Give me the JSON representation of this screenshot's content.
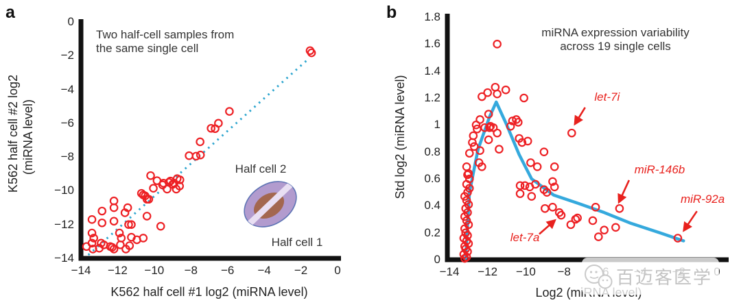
{
  "panel_labels": {
    "a": "a",
    "b": "b"
  },
  "watermark": {
    "logo": "wechat-logo",
    "text": "百迈客医学"
  },
  "colors": {
    "marker": "#ed2024",
    "trend_line": "#35a9dd",
    "dotted_line": "#2fa6cf",
    "annotation": "#e8211d",
    "axis": "#111111",
    "text": "#333333",
    "cell_outer_fill": "#b29bce",
    "cell_outer_stroke": "#5d73b4",
    "cell_nucleus": "#a3674f",
    "cell_split_stripe": "#e9dff3",
    "watermark_gray": "#c3c3c3"
  },
  "chart_data": [
    {
      "type": "scatter",
      "title_line1": "Two half-cell samples from",
      "title_line2": "the same single cell",
      "xlabel": "K562 half cell #1 log2 (miRNA level)",
      "ylabel_line1": "K562 half cell #2 log2",
      "ylabel_line2": "(miRNA level)",
      "xlim": [
        -14,
        0
      ],
      "ylim": [
        -14,
        0
      ],
      "grid": false,
      "x_ticks": {
        "values": [
          -14,
          -12,
          -10,
          -8,
          -6,
          -4,
          -2,
          0
        ],
        "labels": [
          "−14",
          "−12",
          "−10",
          "−8",
          "−6",
          "−4",
          "−2",
          "0"
        ]
      },
      "y_ticks": {
        "values": [
          0,
          -2,
          -4,
          -6,
          -8,
          -10,
          -12,
          -14
        ],
        "labels": [
          "0",
          "−2",
          "−4",
          "−6",
          "−8",
          "−10",
          "−12",
          "−14"
        ]
      },
      "identity_line": {
        "style": "dotted",
        "from": [
          -13.6,
          -13.8
        ],
        "to": [
          -1.65,
          -2.25
        ]
      },
      "inset": {
        "label_top": "Half cell 2",
        "label_bottom": "Half cell 1"
      },
      "points": [
        [
          -1.5,
          -1.7
        ],
        [
          -1.42,
          -1.83
        ],
        [
          -5.9,
          -5.3
        ],
        [
          -6.5,
          -6.0
        ],
        [
          -6.9,
          -6.3
        ],
        [
          -6.68,
          -6.32
        ],
        [
          -7.5,
          -7.1
        ],
        [
          -7.72,
          -7.95
        ],
        [
          -7.48,
          -7.88
        ],
        [
          -8.1,
          -7.92
        ],
        [
          -8.6,
          -9.35
        ],
        [
          -8.75,
          -9.28
        ],
        [
          -8.92,
          -9.55
        ],
        [
          -8.62,
          -9.72
        ],
        [
          -9.0,
          -9.62
        ],
        [
          -8.8,
          -9.9
        ],
        [
          -9.12,
          -9.42
        ],
        [
          -9.3,
          -9.9
        ],
        [
          -9.2,
          -9.5
        ],
        [
          -9.5,
          -9.55
        ],
        [
          -9.85,
          -9.4
        ],
        [
          -9.55,
          -9.65
        ],
        [
          -10.2,
          -9.1
        ],
        [
          -10.05,
          -9.85
        ],
        [
          -10.5,
          -10.3
        ],
        [
          -10.3,
          -10.5
        ],
        [
          -10.7,
          -10.15
        ],
        [
          -10.6,
          -10.25
        ],
        [
          -10.4,
          -10.5
        ],
        [
          -12.2,
          -10.6
        ],
        [
          -12.2,
          -11.0
        ],
        [
          -11.45,
          -11.0
        ],
        [
          -11.6,
          -11.3
        ],
        [
          -12.85,
          -11.2
        ],
        [
          -13.4,
          -11.7
        ],
        [
          -12.85,
          -11.9
        ],
        [
          -12.2,
          -11.8
        ],
        [
          -11.4,
          -12.0
        ],
        [
          -11.25,
          -12.0
        ],
        [
          -10.4,
          -11.5
        ],
        [
          -13.4,
          -12.5
        ],
        [
          -13.3,
          -12.8
        ],
        [
          -11.9,
          -12.5
        ],
        [
          -11.8,
          -12.8
        ],
        [
          -11.25,
          -12.75
        ],
        [
          -10.95,
          -12.9
        ],
        [
          -10.6,
          -12.8
        ],
        [
          -9.65,
          -12.1
        ],
        [
          -13.7,
          -13.3
        ],
        [
          -13.4,
          -13.1
        ],
        [
          -13.35,
          -13.45
        ],
        [
          -13.0,
          -13.4
        ],
        [
          -12.9,
          -13.1
        ],
        [
          -12.75,
          -13.2
        ],
        [
          -12.4,
          -13.3
        ],
        [
          -12.3,
          -13.35
        ],
        [
          -12.2,
          -13.45
        ],
        [
          -11.85,
          -13.2
        ],
        [
          -11.55,
          -13.45
        ],
        [
          -11.35,
          -13.25
        ]
      ]
    },
    {
      "type": "scatter",
      "title_line1": "miRNA expression variability",
      "title_line2": "across 19 single cells",
      "xlabel": "Log2 (miRNA level)",
      "ylabel": "Std log2 (miRNA level)",
      "xlim": [
        -14,
        0
      ],
      "ylim": [
        0,
        1.8
      ],
      "grid": false,
      "x_ticks": {
        "values": [
          -14,
          -12,
          -10,
          -8,
          -6,
          -4,
          -2,
          0
        ],
        "labels": [
          "−14",
          "−12",
          "−10",
          "−8",
          "−6",
          "−4",
          "−2",
          "0"
        ]
      },
      "y_ticks": {
        "values": [
          0,
          0.2,
          0.4,
          0.6,
          0.8,
          1,
          1.2,
          1.4,
          1.6,
          1.8
        ],
        "labels": [
          "0",
          "0.2",
          "0.4",
          "0.6",
          "0.8",
          "1",
          "1.2",
          "1.4",
          "1.6",
          "1.8"
        ]
      },
      "trend_line": [
        [
          -13.15,
          0.01
        ],
        [
          -12.95,
          0.5
        ],
        [
          -12.5,
          0.82
        ],
        [
          -11.9,
          1.06
        ],
        [
          -11.55,
          1.17
        ],
        [
          -11.0,
          1.0
        ],
        [
          -10.35,
          0.78
        ],
        [
          -9.7,
          0.6
        ],
        [
          -8.55,
          0.48
        ],
        [
          -7.3,
          0.42
        ],
        [
          -5.9,
          0.35
        ],
        [
          -4.5,
          0.27
        ],
        [
          -3.0,
          0.2
        ],
        [
          -1.75,
          0.14
        ]
      ],
      "annotations": [
        {
          "label": "let-7i",
          "label_pos": [
            -5.75,
            1.2
          ],
          "arrow": [
            [
              -6.9,
              1.13
            ],
            [
              -7.42,
              1.01
            ]
          ],
          "point": [
            -7.6,
            0.94
          ]
        },
        {
          "label": "miR-146b",
          "label_pos": [
            -3.0,
            0.66
          ],
          "arrow": [
            [
              -4.6,
              0.59
            ],
            [
              -5.12,
              0.43
            ]
          ],
          "point": [
            -5.1,
            0.38
          ]
        },
        {
          "label": "miR-92a",
          "label_pos": [
            -0.75,
            0.44
          ],
          "arrow": [
            [
              -1.05,
              0.36
            ],
            [
              -1.72,
              0.22
            ]
          ],
          "point": [
            -2.05,
            0.16
          ]
        },
        {
          "label": "let-7a",
          "label_pos": [
            -10.05,
            0.16
          ],
          "arrow": [
            [
              -9.3,
              0.19
            ],
            [
              -8.5,
              0.29
            ]
          ],
          "point": [
            -8.25,
            0.35
          ]
        }
      ],
      "points": [
        [
          -13.2,
          0.01
        ],
        [
          -13.1,
          0.02
        ],
        [
          -13.25,
          0.04
        ],
        [
          -13.05,
          0.06
        ],
        [
          -13.15,
          0.08
        ],
        [
          -13.2,
          0.1
        ],
        [
          -13.0,
          0.12
        ],
        [
          -13.1,
          0.14
        ],
        [
          -13.25,
          0.16
        ],
        [
          -13.05,
          0.18
        ],
        [
          -13.15,
          0.2
        ],
        [
          -13.2,
          0.23
        ],
        [
          -13.0,
          0.26
        ],
        [
          -13.1,
          0.29
        ],
        [
          -13.2,
          0.32
        ],
        [
          -13.05,
          0.35
        ],
        [
          -13.15,
          0.38
        ],
        [
          -13.0,
          0.41
        ],
        [
          -13.1,
          0.44
        ],
        [
          -13.2,
          0.47
        ],
        [
          -13.05,
          0.5
        ],
        [
          -12.95,
          0.53
        ],
        [
          -13.1,
          0.56
        ],
        [
          -12.95,
          0.6
        ],
        [
          -13.05,
          0.63
        ],
        [
          -13.1,
          0.69
        ],
        [
          -13.0,
          0.64
        ],
        [
          -12.95,
          0.79
        ],
        [
          -12.8,
          0.87
        ],
        [
          -12.75,
          0.92
        ],
        [
          -12.7,
          0.84
        ],
        [
          -12.6,
          1.0
        ],
        [
          -12.55,
          0.97
        ],
        [
          -12.45,
          0.72
        ],
        [
          -12.4,
          1.04
        ],
        [
          -12.4,
          0.81
        ],
        [
          -12.3,
          0.69
        ],
        [
          -12.3,
          1.21
        ],
        [
          -12.15,
          0.98
        ],
        [
          -12.0,
          1.24
        ],
        [
          -11.95,
          1.08
        ],
        [
          -11.95,
          0.89
        ],
        [
          -11.9,
          0.98
        ],
        [
          -11.85,
          0.99
        ],
        [
          -11.7,
          0.98
        ],
        [
          -11.6,
          1.28
        ],
        [
          -11.5,
          1.23
        ],
        [
          -11.5,
          0.94
        ],
        [
          -11.5,
          1.6
        ],
        [
          -11.4,
          0.82
        ],
        [
          -11.05,
          1.26
        ],
        [
          -10.8,
          0.99
        ],
        [
          -10.7,
          1.03
        ],
        [
          -10.5,
          1.04
        ],
        [
          -10.4,
          1.02
        ],
        [
          -10.35,
          0.9
        ],
        [
          -10.2,
          0.87
        ],
        [
          -10.1,
          1.2
        ],
        [
          -9.9,
          0.88
        ],
        [
          -9.75,
          0.72
        ],
        [
          -9.4,
          0.69
        ],
        [
          -9.05,
          0.8
        ],
        [
          -10.3,
          0.55
        ],
        [
          -10.3,
          0.49
        ],
        [
          -10.05,
          0.55
        ],
        [
          -9.8,
          0.54
        ],
        [
          -9.7,
          0.47
        ],
        [
          -9.5,
          0.56
        ],
        [
          -9.05,
          0.52
        ],
        [
          -8.9,
          0.5
        ],
        [
          -8.6,
          0.58
        ],
        [
          -8.5,
          0.54
        ],
        [
          -8.5,
          0.69
        ],
        [
          -9.0,
          0.38
        ],
        [
          -8.6,
          0.39
        ],
        [
          -8.25,
          0.35
        ],
        [
          -8.15,
          0.33
        ],
        [
          -7.6,
          0.94
        ],
        [
          -7.65,
          0.26
        ],
        [
          -7.4,
          0.3
        ],
        [
          -7.3,
          0.31
        ],
        [
          -6.5,
          0.29
        ],
        [
          -6.35,
          0.39
        ],
        [
          -6.2,
          0.17
        ],
        [
          -5.9,
          0.22
        ],
        [
          -5.3,
          0.24
        ],
        [
          -5.1,
          0.38
        ],
        [
          -2.05,
          0.16
        ]
      ]
    }
  ]
}
